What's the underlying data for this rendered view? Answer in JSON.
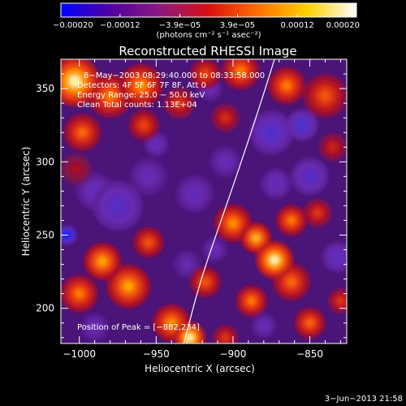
{
  "chart_data": {
    "type": "heatmap",
    "title": "Reconstructed RHESSI Image",
    "xlabel": "Heliocentric X (arcsec)",
    "ylabel": "Heliocentric Y (arcsec)",
    "xlim": [
      -1012,
      -826
    ],
    "ylim": [
      176,
      370
    ],
    "xticks": [
      -1000,
      -950,
      -900,
      -850
    ],
    "yticks": [
      200,
      250,
      300,
      350
    ],
    "xtick_labels": [
      "−1000",
      "−950",
      "−900",
      "−850"
    ],
    "ytick_labels": [
      "200",
      "250",
      "300",
      "350"
    ],
    "colorbar": {
      "range": [
        -0.0002,
        0.0002
      ],
      "ticks": [
        -0.0002,
        -0.00012,
        -3.9e-05,
        3.9e-05,
        0.00012,
        0.0002
      ],
      "tick_labels": [
        "−0.00020",
        "−0.00012",
        "−3.9e−05",
        "3.9e−05",
        "0.00012",
        "0.00020"
      ],
      "unit_label": "(photons cm⁻² s⁻¹ asec⁻²)",
      "colors": [
        "#0000ff",
        "#5000a0",
        "#8a1a80",
        "#d81010",
        "#ff7000",
        "#ffd000",
        "#ffffff"
      ]
    },
    "annotations": [
      "8−May−2003 08:29:40.000 to 08:33:58.000",
      "Detectors: 4F 5F 6F 7F 8F, Att 0",
      "Energy Range: 25.0 − 50.0 keV",
      "Clean     Total counts: 1.13E+04"
    ],
    "peak_label": "Position of Peak = [−882,234]",
    "peak": [
      -882,
      234
    ],
    "limb_curve": [
      [
        -932,
        176
      ],
      [
        -921,
        220
      ],
      [
        -906,
        265
      ],
      [
        -893,
        305
      ],
      [
        -882,
        340
      ],
      [
        -873,
        370
      ]
    ],
    "blobs": [
      {
        "x": -1003,
        "y": 355,
        "r": 16,
        "v": 1.0
      },
      {
        "x": -980,
        "y": 345,
        "r": 14,
        "v": 0.7
      },
      {
        "x": -960,
        "y": 352,
        "r": 14,
        "v": 0.75
      },
      {
        "x": -958,
        "y": 325,
        "r": 10,
        "v": 0.55
      },
      {
        "x": -998,
        "y": 320,
        "r": 12,
        "v": 0.65
      },
      {
        "x": -935,
        "y": 340,
        "r": 10,
        "v": 0.5
      },
      {
        "x": -918,
        "y": 360,
        "r": 10,
        "v": 0.55
      },
      {
        "x": -905,
        "y": 330,
        "r": 9,
        "v": 0.45
      },
      {
        "x": -895,
        "y": 362,
        "r": 12,
        "v": 0.7
      },
      {
        "x": -865,
        "y": 352,
        "r": 12,
        "v": 0.7
      },
      {
        "x": -840,
        "y": 345,
        "r": 14,
        "v": 0.6
      },
      {
        "x": -835,
        "y": 310,
        "r": 9,
        "v": 0.4
      },
      {
        "x": -1002,
        "y": 295,
        "r": 10,
        "v": 0.3
      },
      {
        "x": -985,
        "y": 232,
        "r": 12,
        "v": 0.8
      },
      {
        "x": -968,
        "y": 215,
        "r": 14,
        "v": 0.8
      },
      {
        "x": -1000,
        "y": 210,
        "r": 12,
        "v": 0.7
      },
      {
        "x": -955,
        "y": 245,
        "r": 10,
        "v": 0.6
      },
      {
        "x": -940,
        "y": 190,
        "r": 12,
        "v": 0.75
      },
      {
        "x": -928,
        "y": 180,
        "r": 10,
        "v": 1.0
      },
      {
        "x": -918,
        "y": 218,
        "r": 10,
        "v": 0.6
      },
      {
        "x": -900,
        "y": 258,
        "r": 12,
        "v": 0.75
      },
      {
        "x": -885,
        "y": 248,
        "r": 10,
        "v": 0.85
      },
      {
        "x": -873,
        "y": 233,
        "r": 12,
        "v": 1.0
      },
      {
        "x": -862,
        "y": 260,
        "r": 10,
        "v": 0.7
      },
      {
        "x": -888,
        "y": 205,
        "r": 10,
        "v": 0.7
      },
      {
        "x": -862,
        "y": 218,
        "r": 12,
        "v": 0.65
      },
      {
        "x": -845,
        "y": 265,
        "r": 9,
        "v": 0.5
      },
      {
        "x": -850,
        "y": 190,
        "r": 10,
        "v": 0.65
      },
      {
        "x": -830,
        "y": 205,
        "r": 8,
        "v": 0.5
      },
      {
        "x": -905,
        "y": 180,
        "r": 8,
        "v": 0.5
      },
      {
        "x": -1008,
        "y": 250,
        "r": 6,
        "v": -1.0
      },
      {
        "x": -975,
        "y": 270,
        "r": 16,
        "v": -0.45
      },
      {
        "x": -990,
        "y": 280,
        "r": 12,
        "v": -0.35
      },
      {
        "x": -955,
        "y": 290,
        "r": 12,
        "v": -0.3
      },
      {
        "x": -925,
        "y": 278,
        "r": 12,
        "v": -0.35
      },
      {
        "x": -905,
        "y": 300,
        "r": 10,
        "v": -0.3
      },
      {
        "x": -875,
        "y": 320,
        "r": 14,
        "v": -0.5
      },
      {
        "x": -855,
        "y": 325,
        "r": 10,
        "v": -0.55
      },
      {
        "x": -850,
        "y": 290,
        "r": 12,
        "v": -0.45
      },
      {
        "x": -872,
        "y": 285,
        "r": 10,
        "v": -0.35
      },
      {
        "x": -832,
        "y": 235,
        "r": 10,
        "v": -0.4
      },
      {
        "x": -930,
        "y": 230,
        "r": 9,
        "v": -0.25
      },
      {
        "x": -912,
        "y": 240,
        "r": 8,
        "v": -0.3
      },
      {
        "x": -880,
        "y": 188,
        "r": 8,
        "v": -0.3
      },
      {
        "x": -990,
        "y": 187,
        "r": 9,
        "v": -0.3
      },
      {
        "x": -950,
        "y": 312,
        "r": 8,
        "v": -0.35
      },
      {
        "x": -915,
        "y": 350,
        "r": 8,
        "v": -0.3
      }
    ]
  },
  "footer": {
    "timestamp": "3−Jun−2013 21:58"
  }
}
